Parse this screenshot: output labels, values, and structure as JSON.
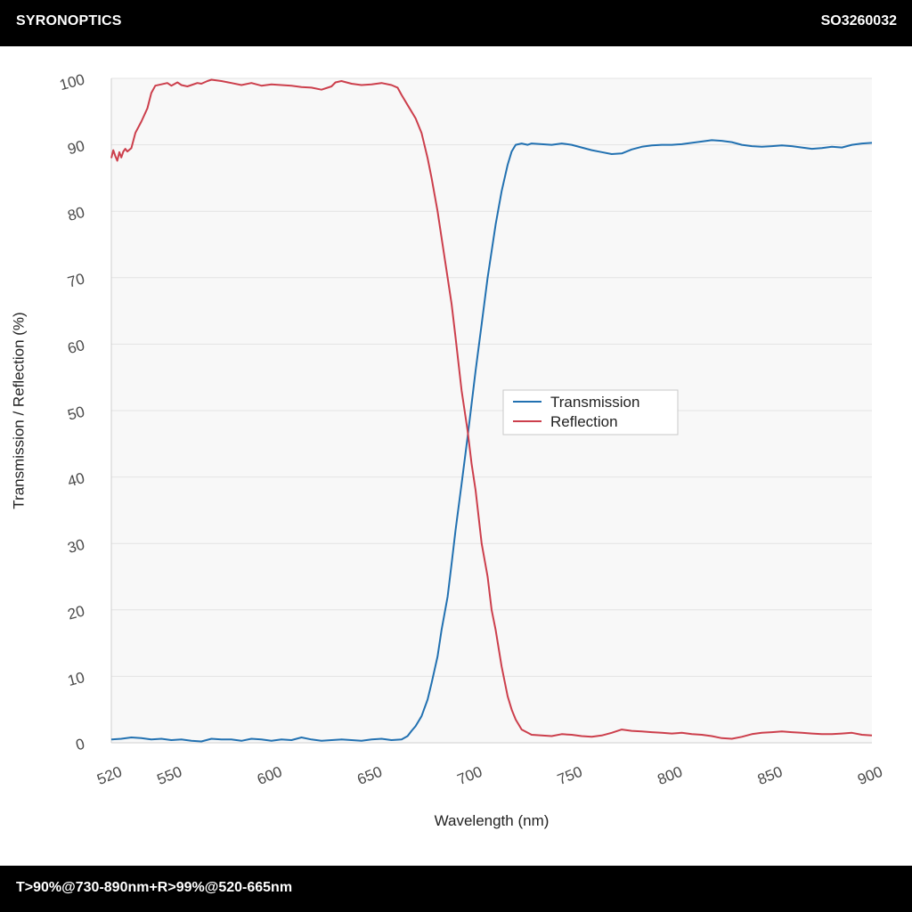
{
  "header": {
    "brand": "SYRONOPTICS",
    "part_number": "SO3260032"
  },
  "footer": {
    "spec": "T>90%@730-890nm+R>99%@520-665nm"
  },
  "colors": {
    "transmission": "#2271b1",
    "reflection": "#cc3f4c",
    "plot_background": "#f8f8f8",
    "gridline": "#e3e3e3"
  },
  "chart_data": {
    "type": "line",
    "title": "",
    "xlabel": "Wavelength (nm)",
    "ylabel": "Transmission / Reflection (%)",
    "xlim": [
      520,
      900
    ],
    "ylim": [
      0,
      100
    ],
    "xticks": [
      520,
      550,
      600,
      650,
      700,
      750,
      800,
      850,
      900
    ],
    "yticks": [
      0,
      10,
      20,
      30,
      40,
      50,
      60,
      70,
      80,
      90,
      100
    ],
    "grid": true,
    "legend_position": "center-right",
    "series": [
      {
        "name": "Transmission",
        "color": "#2271b1",
        "x": [
          520,
          525,
          530,
          535,
          540,
          545,
          550,
          555,
          560,
          565,
          570,
          575,
          580,
          585,
          590,
          595,
          600,
          605,
          610,
          615,
          620,
          625,
          630,
          635,
          640,
          645,
          650,
          655,
          660,
          665,
          668,
          670,
          672,
          675,
          678,
          680,
          683,
          685,
          688,
          690,
          692,
          695,
          698,
          700,
          702,
          705,
          708,
          710,
          712,
          715,
          718,
          720,
          722,
          725,
          728,
          730,
          735,
          740,
          745,
          750,
          755,
          760,
          765,
          770,
          775,
          780,
          785,
          790,
          795,
          800,
          805,
          810,
          815,
          820,
          825,
          830,
          835,
          840,
          845,
          850,
          855,
          860,
          865,
          870,
          875,
          880,
          885,
          890,
          895,
          900
        ],
        "y": [
          0.5,
          0.6,
          0.8,
          0.7,
          0.5,
          0.6,
          0.4,
          0.5,
          0.3,
          0.2,
          0.6,
          0.5,
          0.5,
          0.3,
          0.6,
          0.5,
          0.3,
          0.5,
          0.4,
          0.8,
          0.5,
          0.3,
          0.4,
          0.5,
          0.4,
          0.3,
          0.5,
          0.6,
          0.4,
          0.5,
          1.0,
          1.8,
          2.5,
          4.0,
          6.5,
          9.0,
          13.0,
          17.0,
          22.0,
          27.0,
          32.0,
          39.0,
          46.0,
          51.0,
          56.0,
          63.0,
          70.0,
          74.0,
          78.0,
          83.0,
          87.0,
          89.0,
          90.0,
          90.2,
          90.0,
          90.2,
          90.1,
          90.0,
          90.2,
          90.0,
          89.6,
          89.2,
          88.9,
          88.6,
          88.7,
          89.3,
          89.7,
          89.9,
          90.0,
          90.0,
          90.1,
          90.3,
          90.5,
          90.7,
          90.6,
          90.4,
          90.0,
          89.8,
          89.7,
          89.8,
          89.9,
          89.8,
          89.6,
          89.4,
          89.5,
          89.7,
          89.6,
          90.0,
          90.2,
          90.3
        ]
      },
      {
        "name": "Reflection",
        "color": "#cc3f4c",
        "x": [
          520,
          521,
          522,
          523,
          524,
          525,
          526,
          527,
          528,
          530,
          532,
          535,
          538,
          540,
          542,
          545,
          548,
          550,
          553,
          555,
          558,
          560,
          563,
          565,
          568,
          570,
          575,
          580,
          585,
          590,
          595,
          600,
          605,
          610,
          615,
          620,
          625,
          630,
          632,
          635,
          640,
          645,
          650,
          655,
          660,
          663,
          665,
          668,
          670,
          672,
          675,
          678,
          680,
          683,
          685,
          688,
          690,
          692,
          695,
          698,
          700,
          702,
          705,
          708,
          710,
          712,
          715,
          718,
          720,
          722,
          725,
          730,
          735,
          740,
          745,
          750,
          755,
          760,
          765,
          770,
          775,
          780,
          785,
          790,
          795,
          800,
          805,
          810,
          815,
          820,
          825,
          830,
          835,
          840,
          845,
          850,
          855,
          860,
          865,
          870,
          875,
          880,
          885,
          890,
          895,
          900
        ],
        "y": [
          88.0,
          89.2,
          88.3,
          87.6,
          88.9,
          88.1,
          89.0,
          89.4,
          89.0,
          89.5,
          91.8,
          93.5,
          95.5,
          97.8,
          98.9,
          99.1,
          99.3,
          98.9,
          99.4,
          99.0,
          98.8,
          99.0,
          99.3,
          99.2,
          99.6,
          99.8,
          99.6,
          99.3,
          99.0,
          99.3,
          98.9,
          99.1,
          99.0,
          98.9,
          98.7,
          98.6,
          98.3,
          98.8,
          99.4,
          99.6,
          99.2,
          99.0,
          99.1,
          99.3,
          99.0,
          98.6,
          97.5,
          96.0,
          95.0,
          94.0,
          91.8,
          88.0,
          85.0,
          80.0,
          76.0,
          70.0,
          66.0,
          61.0,
          53.0,
          47.0,
          42.0,
          38.0,
          30.0,
          25.0,
          20.0,
          17.0,
          11.5,
          7.0,
          5.0,
          3.5,
          2.0,
          1.2,
          1.1,
          1.0,
          1.3,
          1.2,
          1.0,
          0.9,
          1.1,
          1.5,
          2.0,
          1.8,
          1.7,
          1.6,
          1.5,
          1.4,
          1.5,
          1.3,
          1.2,
          1.0,
          0.7,
          0.6,
          0.9,
          1.3,
          1.5,
          1.6,
          1.7,
          1.6,
          1.5,
          1.4,
          1.3,
          1.3,
          1.4,
          1.5,
          1.2,
          1.1
        ]
      }
    ]
  }
}
